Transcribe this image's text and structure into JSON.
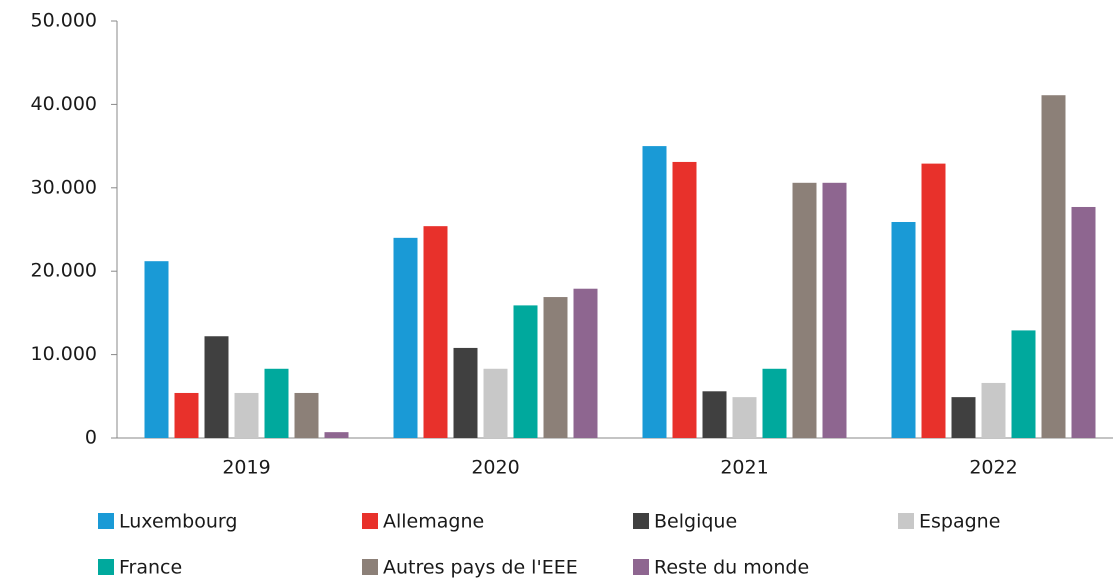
{
  "chart_data": {
    "type": "bar",
    "categories": [
      "2019",
      "2020",
      "2021",
      "2022"
    ],
    "series": [
      {
        "name": "Luxembourg",
        "color": "#1a9ad6",
        "values": [
          21200,
          24000,
          35000,
          25900
        ]
      },
      {
        "name": "Allemagne",
        "color": "#e8312b",
        "values": [
          5400,
          25400,
          33100,
          32900
        ]
      },
      {
        "name": "Belgique",
        "color": "#404040",
        "values": [
          12200,
          10800,
          5600,
          4900
        ]
      },
      {
        "name": "Espagne",
        "color": "#c8c8c8",
        "values": [
          5400,
          8300,
          4900,
          6600
        ]
      },
      {
        "name": "France",
        "color": "#00a99d",
        "values": [
          8300,
          15900,
          8300,
          12900
        ]
      },
      {
        "name": "Autres pays de l'EEE",
        "color": "#8c8078",
        "values": [
          5400,
          16900,
          30600,
          41100
        ]
      },
      {
        "name": "Reste du monde",
        "color": "#8e6690",
        "values": [
          700,
          17900,
          30600,
          27700
        ]
      }
    ],
    "ylim": [
      0,
      50000
    ],
    "yticks": [
      0,
      {
        "value": 10000,
        "label": "10.000"
      },
      {
        "value": 20000,
        "label": "20.000"
      },
      {
        "value": 30000,
        "label": "30.000"
      },
      {
        "value": 40000,
        "label": "40.000"
      },
      {
        "value": 50000,
        "label": "50.000"
      }
    ],
    "grid": false,
    "legend": "bottom"
  }
}
